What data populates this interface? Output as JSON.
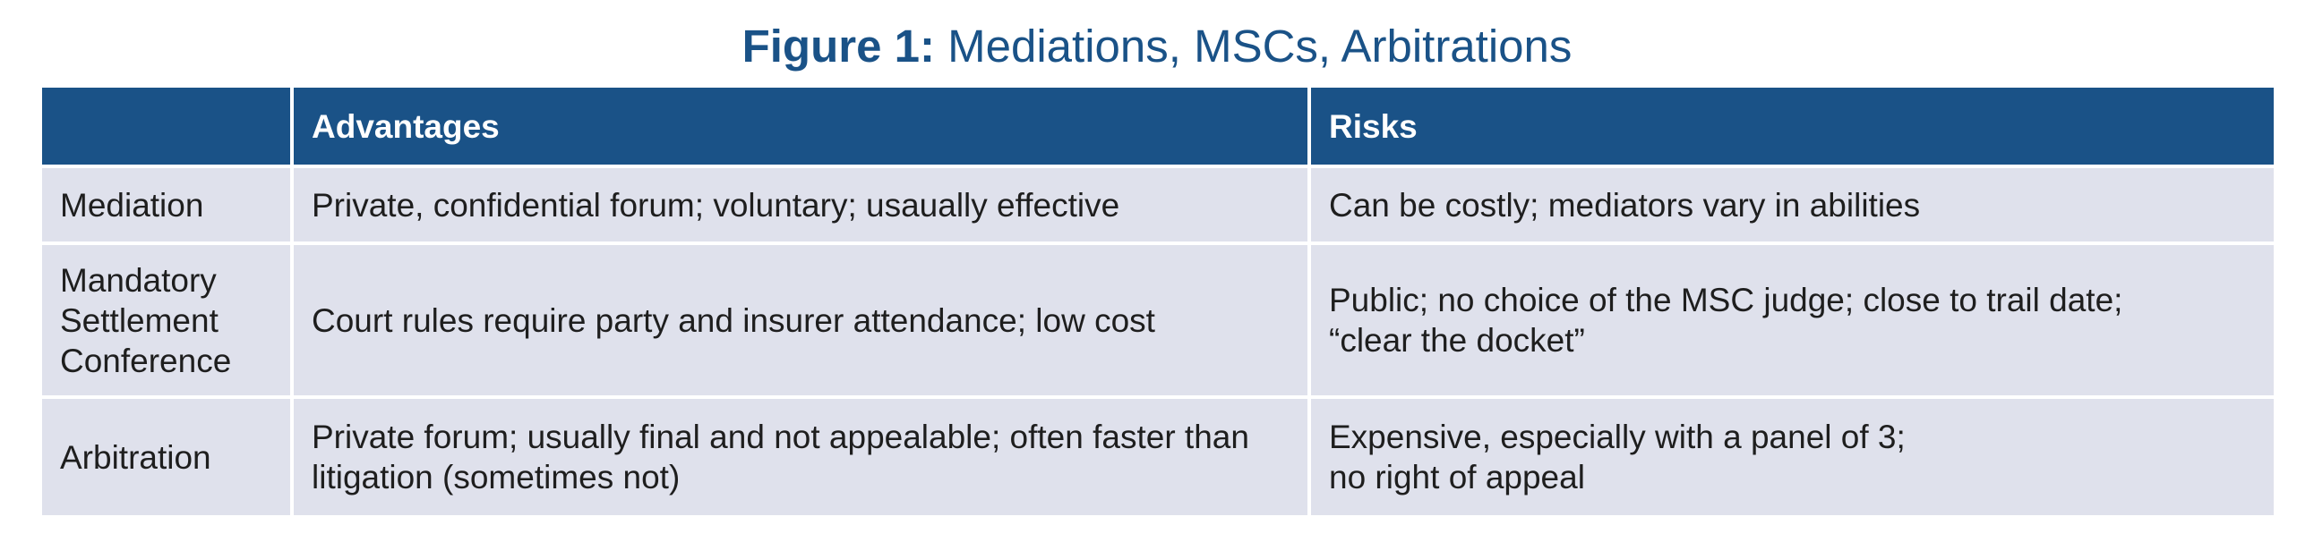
{
  "figure": {
    "title_prefix": "Figure 1:",
    "title_text": " Mediations, MSCs, Arbitrations"
  },
  "table": {
    "headers": [
      "",
      "Advantages",
      "Risks"
    ],
    "rows": [
      {
        "label_lines": [
          "Mediation"
        ],
        "advantages": "Private, confidential forum; voluntary; usaually effective",
        "risks_lines": [
          "Can be costly; mediators vary in abilities"
        ]
      },
      {
        "label_lines": [
          "Mandatory",
          "Settlement",
          "Conference"
        ],
        "advantages": "Court rules require party and insurer attendance; low cost",
        "risks_lines": [
          "Public; no choice of the MSC judge; close to trail date;",
          "“clear the docket”"
        ]
      },
      {
        "label_lines": [
          "Arbitration"
        ],
        "advantages": "Private forum; usually final and not appealable; often faster than litigation (sometimes not)",
        "risks_lines": [
          "Expensive, especially with a panel of 3;",
          "no right of appeal"
        ]
      }
    ]
  }
}
